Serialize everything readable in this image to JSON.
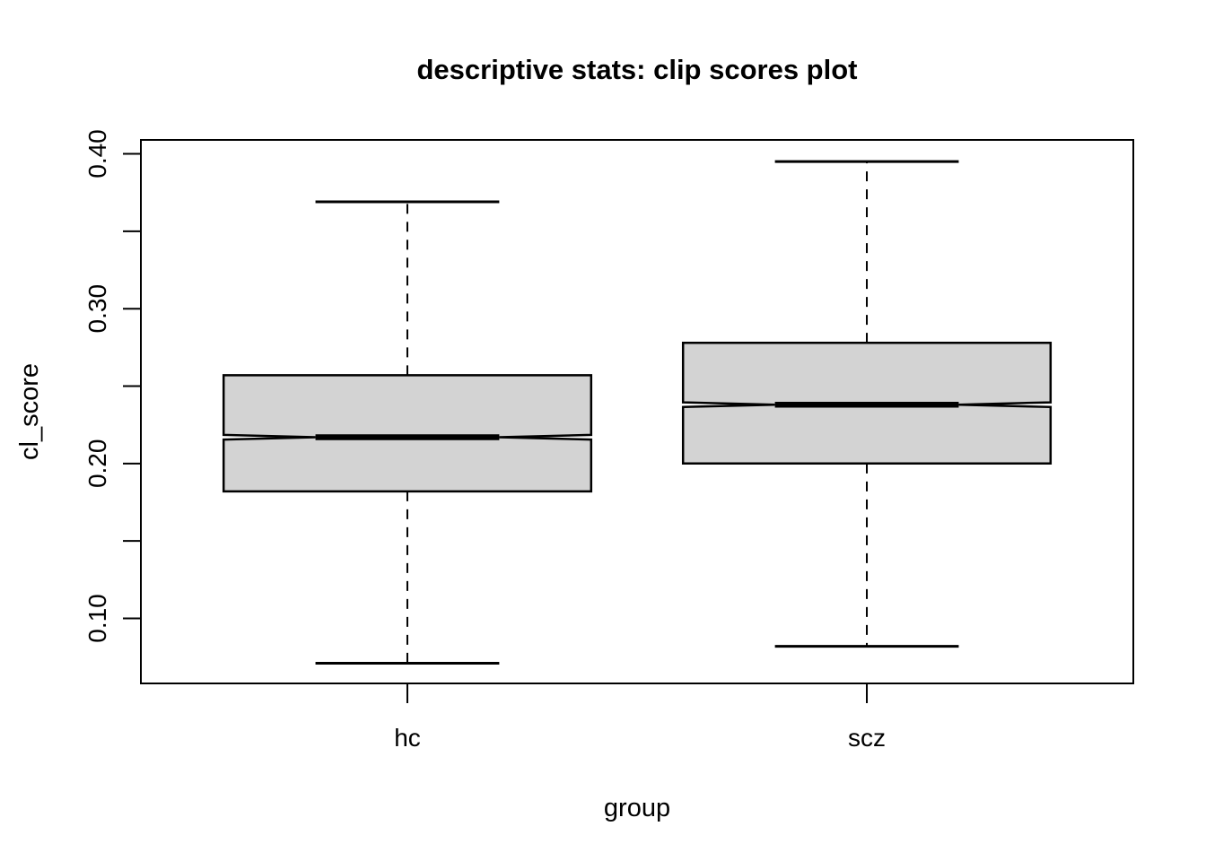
{
  "title": "descriptive stats: clip scores plot",
  "axes": {
    "xlabel": "group",
    "ylabel": "cl_score"
  },
  "chart_data": {
    "type": "boxplot",
    "orientation": "vertical",
    "notched": true,
    "title": "descriptive stats: clip scores plot",
    "xlabel": "group",
    "ylabel": "cl_score",
    "categories": [
      "hc",
      "scz"
    ],
    "series": [
      {
        "name": "hc",
        "whisker_low": 0.071,
        "q1": 0.182,
        "notch_low": 0.2155,
        "median": 0.217,
        "notch_high": 0.2185,
        "q3": 0.257,
        "whisker_high": 0.369,
        "outliers": []
      },
      {
        "name": "scz",
        "whisker_low": 0.082,
        "q1": 0.2,
        "notch_low": 0.2365,
        "median": 0.238,
        "notch_high": 0.2395,
        "q3": 0.278,
        "whisker_high": 0.395,
        "outliers": []
      }
    ],
    "ylim": [
      0.058,
      0.409
    ],
    "yticks": [
      0.1,
      0.15,
      0.2,
      0.25,
      0.3,
      0.35,
      0.4
    ],
    "ytick_labeled_values": [
      0.1,
      0.2,
      0.3,
      0.4
    ],
    "ytick_labels": [
      "0.10",
      "0.20",
      "0.30",
      "0.40"
    ],
    "grid": false,
    "legend": "none",
    "box_fill": "#d3d3d3",
    "line_color": "#000000",
    "background": "#ffffff"
  }
}
